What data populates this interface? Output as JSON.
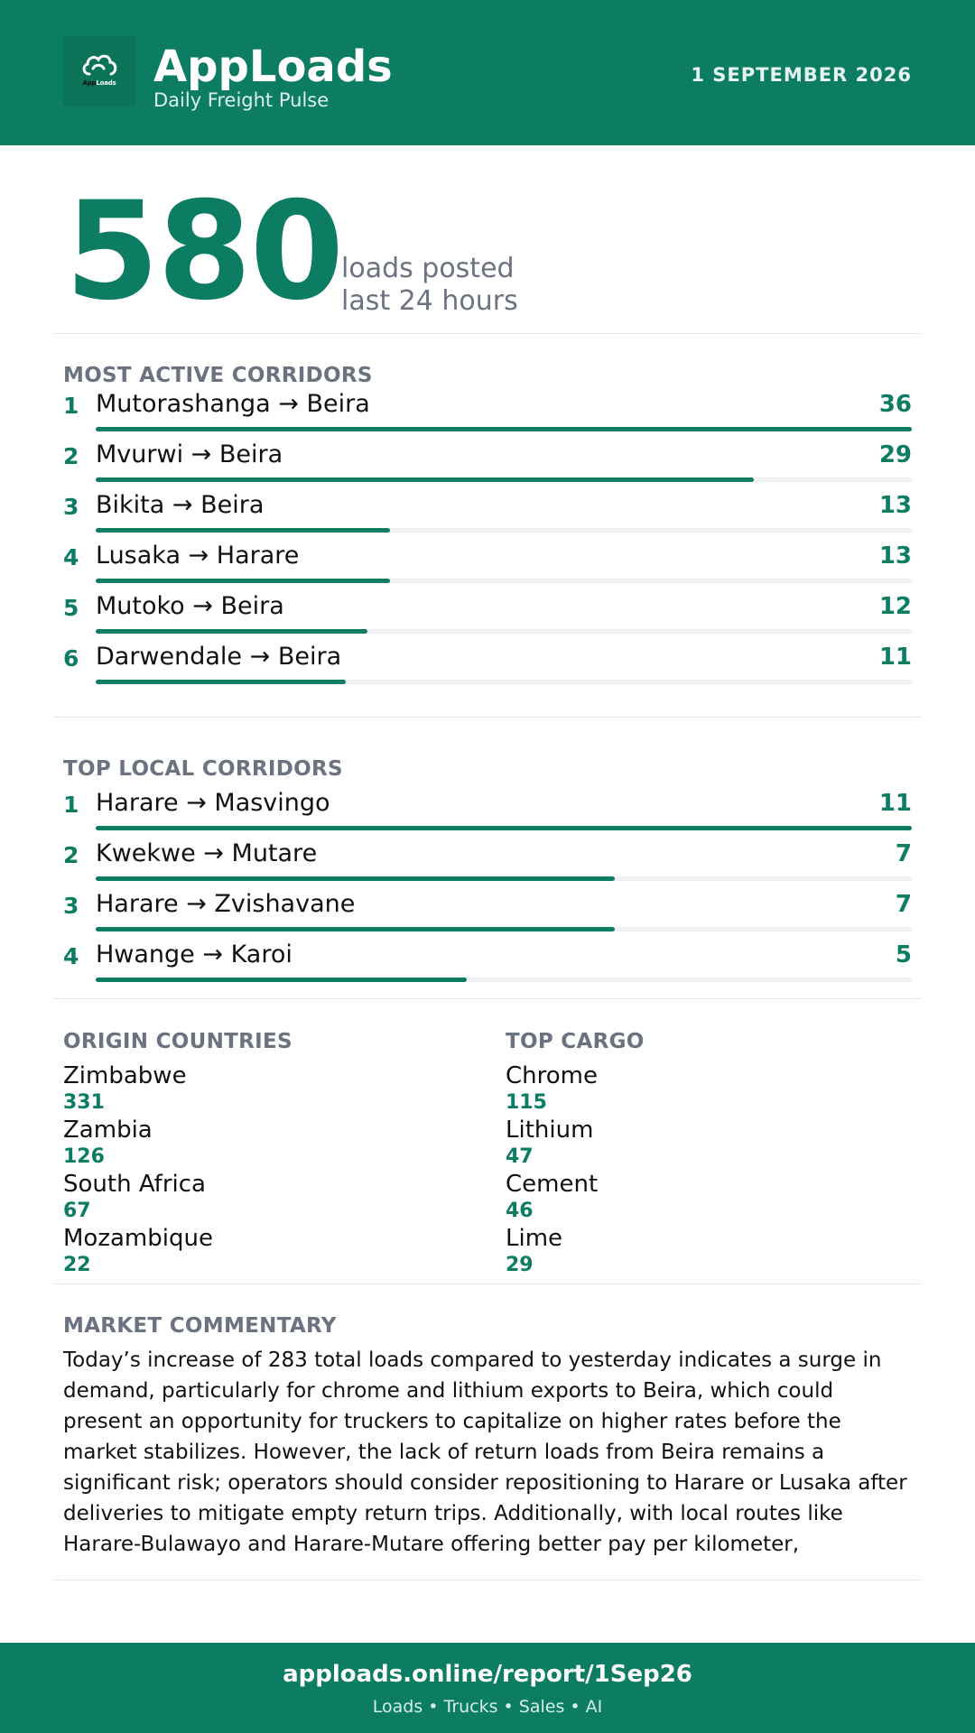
{
  "header": {
    "logo_icon": "cloud-icon",
    "logo_text_app": "App",
    "logo_text_loads": "Loads",
    "brand": "AppLoads",
    "tagline": "Daily Freight Pulse",
    "date": "1 SEPTEMBER 2026"
  },
  "hero": {
    "value": "580",
    "line1": "loads posted",
    "line2": "last 24 hours"
  },
  "active_corridors": {
    "title": "MOST ACTIVE CORRIDORS",
    "items": [
      {
        "rank": "1",
        "route": "Mutorashanga → Beira",
        "count": "36",
        "share": 1.0
      },
      {
        "rank": "2",
        "route": "Mvurwi → Beira",
        "count": "29",
        "share": 0.806
      },
      {
        "rank": "3",
        "route": "Bikita → Beira",
        "count": "13",
        "share": 0.361
      },
      {
        "rank": "4",
        "route": "Lusaka → Harare",
        "count": "13",
        "share": 0.361
      },
      {
        "rank": "5",
        "route": "Mutoko → Beira",
        "count": "12",
        "share": 0.333
      },
      {
        "rank": "6",
        "route": "Darwendale → Beira",
        "count": "11",
        "share": 0.306
      }
    ]
  },
  "local_corridors": {
    "title": "TOP LOCAL CORRIDORS",
    "items": [
      {
        "rank": "1",
        "route": "Harare → Masvingo",
        "count": "11",
        "share": 1.0
      },
      {
        "rank": "2",
        "route": "Kwekwe → Mutare",
        "count": "7",
        "share": 0.636
      },
      {
        "rank": "3",
        "route": "Harare → Zvishavane",
        "count": "7",
        "share": 0.636
      },
      {
        "rank": "4",
        "route": "Hwange → Karoi",
        "count": "5",
        "share": 0.455
      }
    ]
  },
  "origin_countries": {
    "title": "ORIGIN COUNTRIES",
    "items": [
      {
        "name": "Zimbabwe",
        "value": "331"
      },
      {
        "name": "Zambia",
        "value": "126"
      },
      {
        "name": "South Africa",
        "value": "67"
      },
      {
        "name": "Mozambique",
        "value": "22"
      }
    ]
  },
  "top_cargo": {
    "title": "TOP CARGO",
    "items": [
      {
        "name": "Chrome",
        "value": "115"
      },
      {
        "name": "Lithium",
        "value": "47"
      },
      {
        "name": "Cement",
        "value": "46"
      },
      {
        "name": "Lime",
        "value": "29"
      }
    ]
  },
  "commentary": {
    "title": "MARKET COMMENTARY",
    "text": "Today’s increase of 283 total loads compared to yesterday indicates a surge in demand, particularly for chrome and lithium exports to Beira, which could present an opportunity for truckers to capitalize on higher rates before the market stabilizes. However, the lack of return loads from Beira remains a significant risk; operators should consider repositioning to Harare or Lusaka after deliveries to mitigate empty return trips. Additionally, with local routes like Harare-Bulawayo and Harare-Mutare offering better pay per kilometer,"
  },
  "footer": {
    "url": "apploads.online/report/1Sep26",
    "sub": "Loads • Trucks • Sales • AI"
  },
  "colors": {
    "brand": "#0c7d63",
    "muted": "#6b7280",
    "track": "#f0f1f2"
  }
}
